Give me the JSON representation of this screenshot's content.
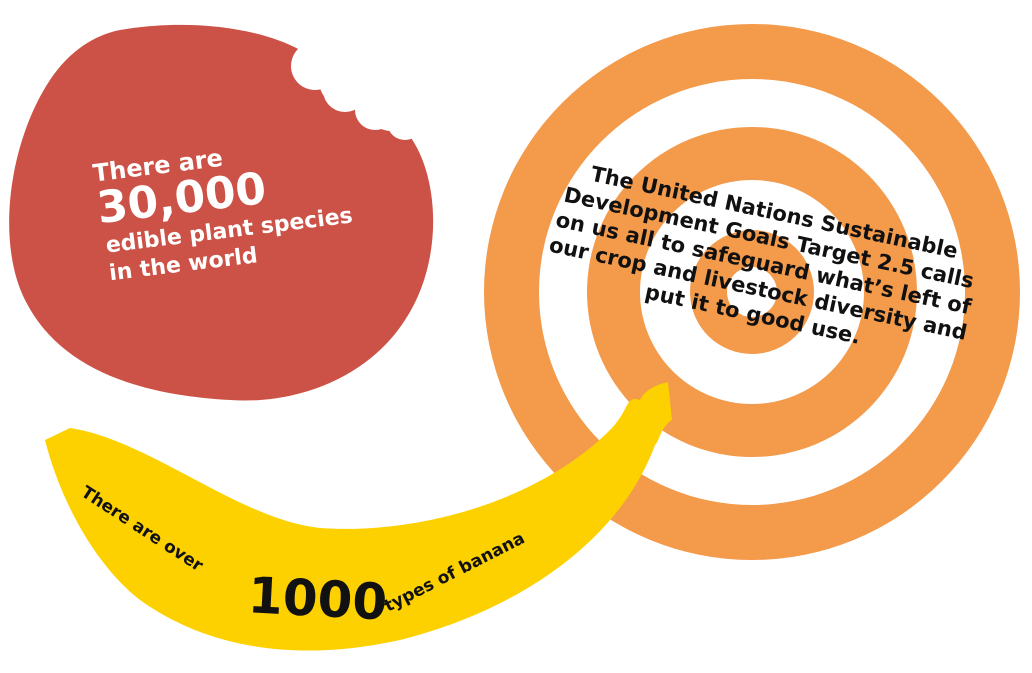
{
  "red_blob": {
    "lines": [
      "There are",
      "30,000",
      "edible plant species",
      "in the world"
    ]
  },
  "target": {
    "lines": [
      "The United Nations Sustainable",
      "Development Goals Target 2.5 calls",
      "on us all to safeguard what’s left of",
      "our crop and livestock diversity and",
      "put it to good use."
    ]
  },
  "banana": {
    "before": "There are over",
    "number": "1000",
    "after": "types of banana"
  }
}
